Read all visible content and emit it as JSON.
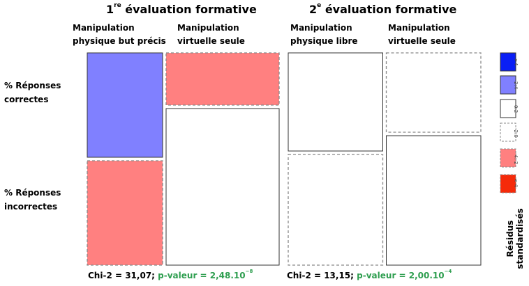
{
  "chart_data": [
    {
      "type": "mosaic",
      "title_num": "1",
      "title_sup": "re",
      "title_rest": " évaluation formative",
      "columns": [
        {
          "label_lines": [
            "Manipulation",
            "physique but précis"
          ],
          "share": 0.4,
          "cells": [
            {
              "row": "% Réponses correctes",
              "proportion": 0.5,
              "residual_class": "2:4"
            },
            {
              "row": "% Réponses incorrectes",
              "proportion": 0.5,
              "residual_class": "-4:-2"
            }
          ]
        },
        {
          "label_lines": [
            "Manipulation",
            "virtuelle seule"
          ],
          "share": 0.6,
          "cells": [
            {
              "row": "% Réponses correctes",
              "proportion": 0.25,
              "residual_class": "-4:-2"
            },
            {
              "row": "% Réponses incorrectes",
              "proportion": 0.75,
              "residual_class": "0:2"
            }
          ]
        }
      ],
      "stat_chi": "Chi-2 = 31,07;",
      "stat_p_label": "p-valeur = 2,48.10",
      "stat_p_exp": "−8"
    },
    {
      "type": "mosaic",
      "title_num": "2",
      "title_sup": "e",
      "title_rest": " évaluation formative",
      "columns": [
        {
          "label_lines": [
            "Manipulation",
            "physique libre"
          ],
          "share": 0.5,
          "cells": [
            {
              "row": "% Réponses correctes",
              "proportion": 0.47,
              "residual_class": "0:2"
            },
            {
              "row": "% Réponses incorrectes",
              "proportion": 0.53,
              "residual_class": "-2:0"
            }
          ]
        },
        {
          "label_lines": [
            "Manipulation",
            "virtuelle seule"
          ],
          "share": 0.5,
          "cells": [
            {
              "row": "% Réponses correctes",
              "proportion": 0.38,
              "residual_class": "-2:0"
            },
            {
              "row": "% Réponses incorrectes",
              "proportion": 0.62,
              "residual_class": "0:2"
            }
          ]
        }
      ],
      "stat_chi": "Chi-2 = 13,15;",
      "stat_p_label": "p-valeur = 2,00.10",
      "stat_p_exp": "−4"
    }
  ],
  "row_labels": [
    [
      "% Réponses",
      "correctes"
    ],
    [
      "% Réponses",
      "incorrectes"
    ]
  ],
  "legend": {
    "title_lines": [
      "Résidus",
      "standardisés"
    ],
    "items": [
      {
        "label": ">4",
        "fill": "#0a1ff5",
        "dashed": false
      },
      {
        "label": "2:4",
        "fill": "#8080ff",
        "dashed": false
      },
      {
        "label": "0:2",
        "fill": "#ffffff",
        "dashed": false
      },
      {
        "label": "-2:0",
        "fill": "#ffffff",
        "dashed": true
      },
      {
        "label": "-4:-2",
        "fill": "#ff8080",
        "dashed": true
      },
      {
        "label": "<-4",
        "fill": "#f52a0a",
        "dashed": true
      }
    ]
  },
  "colors": {
    "positive_strong": "#0a1ff5",
    "positive": "#8080ff",
    "negative": "#ff8080",
    "negative_strong": "#f52a0a",
    "border": "#333333",
    "p_value": "#2e9e4f"
  }
}
